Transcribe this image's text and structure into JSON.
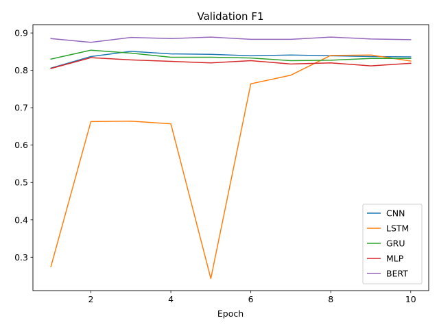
{
  "chart_data": {
    "type": "line",
    "title": "Validation F1",
    "xlabel": "Epoch",
    "ylabel": "",
    "x": [
      1,
      2,
      3,
      4,
      5,
      6,
      7,
      8,
      9,
      10
    ],
    "xlim": [
      0.55,
      10.45
    ],
    "ylim": [
      0.2107,
      0.9222
    ],
    "xticks": [
      2,
      4,
      6,
      8,
      10
    ],
    "yticks": [
      0.3,
      0.4,
      0.5,
      0.6,
      0.7,
      0.8,
      0.9
    ],
    "grid": false,
    "legend_position": "lower-right",
    "series": [
      {
        "name": "CNN",
        "color": "#1f77b4",
        "values": [
          0.806,
          0.837,
          0.851,
          0.844,
          0.843,
          0.839,
          0.841,
          0.839,
          0.837,
          0.836
        ]
      },
      {
        "name": "LSTM",
        "color": "#ff7f0e",
        "values": [
          0.275,
          0.663,
          0.664,
          0.657,
          0.243,
          0.764,
          0.787,
          0.84,
          0.841,
          0.825
        ]
      },
      {
        "name": "GRU",
        "color": "#2ca02c",
        "values": [
          0.83,
          0.854,
          0.846,
          0.835,
          0.835,
          0.833,
          0.826,
          0.827,
          0.832,
          0.832
        ]
      },
      {
        "name": "MLP",
        "color": "#d62728",
        "values": [
          0.805,
          0.834,
          0.828,
          0.824,
          0.82,
          0.826,
          0.817,
          0.82,
          0.812,
          0.819
        ]
      },
      {
        "name": "BERT",
        "color": "#9467bd",
        "values": [
          0.885,
          0.875,
          0.888,
          0.885,
          0.889,
          0.883,
          0.883,
          0.889,
          0.884,
          0.882
        ]
      }
    ]
  }
}
